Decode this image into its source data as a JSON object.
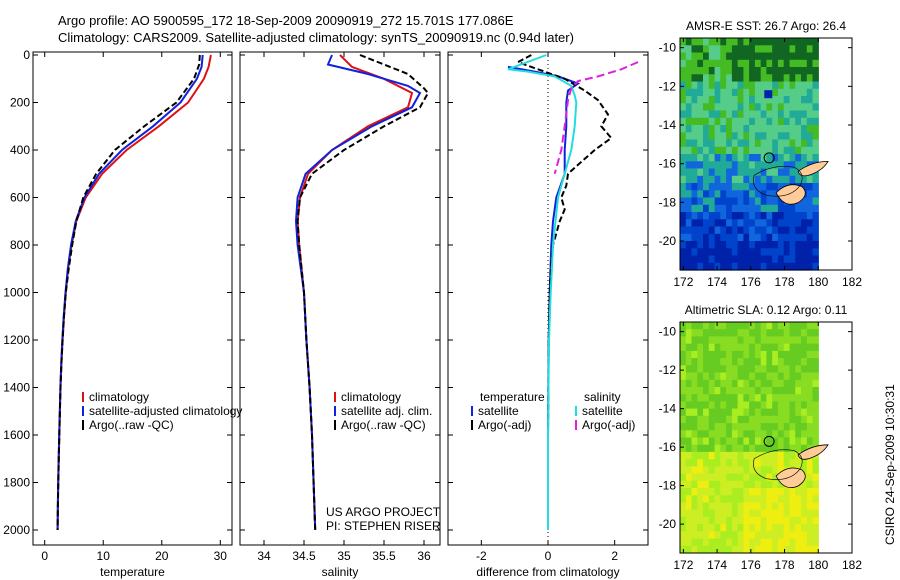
{
  "header": {
    "line1": "Argo profile: AO 5900595_172 18-Sep-2009 20090919_272 15.701S 177.086E",
    "line2": "Climatology: CARS2009. Satellite-adjusted climatology: synTS_20090919.nc (0.94d later)"
  },
  "footer_note": "CSIRO 24-Sep-2009 10:30:31",
  "credits": {
    "line1": "US ARGO PROJECT",
    "line2": "PI: STEPHEN RISER"
  },
  "chart_data": [
    {
      "type": "line",
      "id": "temperature",
      "xlabel": "temperature",
      "xlim": [
        -2,
        32
      ],
      "ylim": [
        0,
        2050
      ],
      "y_inverted": true,
      "xticks": [
        0,
        10,
        20,
        30
      ],
      "yticks": [
        0,
        200,
        400,
        600,
        800,
        1000,
        1200,
        1400,
        1600,
        1800,
        2000
      ],
      "legend": [
        "climatology",
        "satellite-adjusted climatology",
        "Argo(..raw -QC)"
      ],
      "series": [
        {
          "name": "climatology",
          "color": "#dd1111",
          "points": [
            [
              28.4,
              0
            ],
            [
              28.0,
              50
            ],
            [
              27.2,
              100
            ],
            [
              24.5,
              200
            ],
            [
              19.5,
              300
            ],
            [
              14.0,
              400
            ],
            [
              9.8,
              500
            ],
            [
              7.0,
              600
            ],
            [
              5.4,
              700
            ],
            [
              4.6,
              800
            ],
            [
              4.0,
              900
            ],
            [
              3.6,
              1000
            ],
            [
              3.3,
              1100
            ],
            [
              3.05,
              1200
            ],
            [
              2.85,
              1300
            ],
            [
              2.7,
              1400
            ],
            [
              2.6,
              1500
            ],
            [
              2.5,
              1600
            ],
            [
              2.4,
              1700
            ],
            [
              2.3,
              1800
            ],
            [
              2.25,
              1900
            ],
            [
              2.2,
              2000
            ]
          ]
        },
        {
          "name": "satellite-adjusted climatology",
          "color": "#1122dd",
          "points": [
            [
              27.0,
              0
            ],
            [
              26.8,
              50
            ],
            [
              26.0,
              100
            ],
            [
              23.2,
              200
            ],
            [
              18.5,
              300
            ],
            [
              13.2,
              400
            ],
            [
              9.3,
              500
            ],
            [
              6.8,
              600
            ],
            [
              5.3,
              700
            ],
            [
              4.5,
              800
            ],
            [
              3.95,
              900
            ],
            [
              3.55,
              1000
            ],
            [
              3.25,
              1100
            ],
            [
              3.0,
              1200
            ],
            [
              2.82,
              1300
            ],
            [
              2.68,
              1400
            ],
            [
              2.58,
              1500
            ],
            [
              2.48,
              1600
            ],
            [
              2.38,
              1700
            ],
            [
              2.3,
              1800
            ],
            [
              2.24,
              1900
            ],
            [
              2.2,
              2000
            ]
          ]
        },
        {
          "name": "Argo(..raw -QC)",
          "color": "#000000",
          "dash": "6,3",
          "points": [
            [
              26.5,
              0
            ],
            [
              26.4,
              40
            ],
            [
              25.5,
              100
            ],
            [
              22.5,
              200
            ],
            [
              17.0,
              300
            ],
            [
              12.0,
              400
            ],
            [
              8.8,
              500
            ],
            [
              6.6,
              600
            ],
            [
              5.4,
              700
            ],
            [
              4.7,
              800
            ],
            [
              4.1,
              900
            ],
            [
              3.6,
              1000
            ],
            [
              3.3,
              1100
            ],
            [
              3.05,
              1200
            ],
            [
              2.85,
              1300
            ],
            [
              2.7,
              1400
            ],
            [
              2.6,
              1500
            ],
            [
              2.5,
              1600
            ],
            [
              2.4,
              1700
            ],
            [
              2.32,
              1800
            ],
            [
              2.25,
              1900
            ],
            [
              2.2,
              2000
            ]
          ]
        }
      ]
    },
    {
      "type": "line",
      "id": "salinity",
      "xlabel": "salinity",
      "xlim": [
        33.7,
        36.2
      ],
      "ylim": [
        0,
        2050
      ],
      "y_inverted": true,
      "xticks": [
        34,
        34.5,
        35,
        35.5,
        36
      ],
      "legend": [
        "climatology",
        "satellite adj. clim.",
        "Argo(..raw -QC)"
      ],
      "series": [
        {
          "name": "climatology",
          "color": "#dd1111",
          "points": [
            [
              34.95,
              0
            ],
            [
              35.1,
              50
            ],
            [
              35.5,
              100
            ],
            [
              35.85,
              160
            ],
            [
              35.8,
              220
            ],
            [
              35.3,
              300
            ],
            [
              34.85,
              400
            ],
            [
              34.55,
              500
            ],
            [
              34.45,
              600
            ],
            [
              34.42,
              700
            ],
            [
              34.44,
              800
            ],
            [
              34.47,
              900
            ],
            [
              34.5,
              1000
            ],
            [
              34.53,
              1200
            ],
            [
              34.57,
              1400
            ],
            [
              34.6,
              1600
            ],
            [
              34.62,
              1800
            ],
            [
              34.64,
              2000
            ]
          ]
        },
        {
          "name": "satellite adj. clim.",
          "color": "#1122dd",
          "points": [
            [
              34.85,
              0
            ],
            [
              34.8,
              40
            ],
            [
              35.3,
              80
            ],
            [
              35.8,
              130
            ],
            [
              35.95,
              160
            ],
            [
              35.85,
              220
            ],
            [
              35.35,
              300
            ],
            [
              34.85,
              400
            ],
            [
              34.52,
              500
            ],
            [
              34.42,
              600
            ],
            [
              34.4,
              700
            ],
            [
              34.42,
              800
            ],
            [
              34.46,
              900
            ],
            [
              34.5,
              1000
            ],
            [
              34.53,
              1200
            ],
            [
              34.57,
              1400
            ],
            [
              34.6,
              1600
            ],
            [
              34.62,
              1800
            ],
            [
              34.64,
              2000
            ]
          ]
        },
        {
          "name": "Argo(..raw -QC)",
          "color": "#000000",
          "dash": "6,3",
          "points": [
            [
              35.2,
              0
            ],
            [
              35.5,
              40
            ],
            [
              35.8,
              80
            ],
            [
              36.0,
              140
            ],
            [
              36.05,
              160
            ],
            [
              35.95,
              220
            ],
            [
              35.5,
              300
            ],
            [
              35.0,
              400
            ],
            [
              34.6,
              500
            ],
            [
              34.45,
              600
            ],
            [
              34.42,
              700
            ],
            [
              34.44,
              800
            ],
            [
              34.47,
              900
            ],
            [
              34.5,
              1000
            ],
            [
              34.53,
              1200
            ],
            [
              34.57,
              1400
            ],
            [
              34.6,
              1600
            ],
            [
              34.62,
              1800
            ],
            [
              34.64,
              2000
            ]
          ]
        }
      ]
    },
    {
      "type": "line",
      "id": "difference",
      "xlabel": "difference from climatology",
      "xlim": [
        -3,
        3
      ],
      "ylim": [
        0,
        2050
      ],
      "y_inverted": true,
      "xticks": [
        -2,
        0,
        2
      ],
      "legend": [
        "temperature",
        "satellite",
        "Argo(-adj)",
        "salinity",
        "satellite",
        "Argo(-adj)"
      ],
      "series": [
        {
          "name": "temperature satellite",
          "color": "#1122dd",
          "points": [
            [
              -1.2,
              50
            ],
            [
              -0.4,
              70
            ],
            [
              0.3,
              90
            ],
            [
              0.9,
              120
            ],
            [
              0.6,
              150
            ],
            [
              0.55,
              200
            ],
            [
              0.55,
              300
            ],
            [
              0.5,
              400
            ],
            [
              0.5,
              500
            ],
            [
              0.25,
              600
            ],
            [
              0.15,
              700
            ],
            [
              0.1,
              800
            ],
            [
              0.05,
              1000
            ],
            [
              0.02,
              1200
            ],
            [
              0.0,
              1600
            ],
            [
              0.0,
              2000
            ]
          ]
        },
        {
          "name": "temperature Argo(-adj)",
          "color": "#000000",
          "dash": "6,3",
          "points": [
            [
              -0.5,
              0
            ],
            [
              -0.9,
              30
            ],
            [
              -0.3,
              60
            ],
            [
              0.5,
              100
            ],
            [
              1.1,
              150
            ],
            [
              1.5,
              190
            ],
            [
              1.8,
              250
            ],
            [
              1.6,
              300
            ],
            [
              1.9,
              350
            ],
            [
              1.4,
              400
            ],
            [
              1.0,
              450
            ],
            [
              0.6,
              500
            ],
            [
              0.55,
              550
            ],
            [
              0.4,
              600
            ],
            [
              0.5,
              650
            ],
            [
              0.35,
              700
            ],
            [
              0.15,
              800
            ],
            [
              0.08,
              900
            ],
            [
              0.05,
              1000
            ],
            [
              0.02,
              1200
            ],
            [
              0.0,
              1600
            ],
            [
              0.0,
              2000
            ]
          ]
        },
        {
          "name": "salinity satellite",
          "color": "#22dddd",
          "points": [
            [
              -0.05,
              0
            ],
            [
              -1.2,
              60
            ],
            [
              -0.6,
              70
            ],
            [
              0.2,
              90
            ],
            [
              0.7,
              130
            ],
            [
              0.8,
              170
            ],
            [
              0.85,
              200
            ],
            [
              0.8,
              300
            ],
            [
              0.7,
              400
            ],
            [
              0.3,
              600
            ],
            [
              0.15,
              800
            ],
            [
              0.08,
              1000
            ],
            [
              0.03,
              1200
            ],
            [
              0.0,
              1600
            ],
            [
              0.0,
              2000
            ]
          ]
        },
        {
          "name": "salinity Argo(-adj)",
          "color": "#dd22dd",
          "dash": "8,4",
          "points": [
            [
              2.7,
              30
            ],
            [
              2.2,
              60
            ],
            [
              1.5,
              90
            ],
            [
              0.9,
              110
            ],
            [
              0.7,
              140
            ],
            [
              0.6,
              190
            ],
            [
              0.5,
              300
            ],
            [
              0.4,
              400
            ],
            [
              0.2,
              500
            ]
          ]
        }
      ]
    }
  ],
  "maps": [
    {
      "title": "AMSR-E SST: 26.7 Argo: 26.4",
      "xticks": [
        172,
        174,
        176,
        178,
        180,
        182
      ],
      "yticks": [
        -10,
        -12,
        -14,
        -16,
        -18,
        -20
      ],
      "xlim": [
        171.8,
        182.0
      ],
      "ylim": [
        -21.5,
        -9.5
      ],
      "colors": [
        "#116622",
        "#44bb22",
        "#55cc88",
        "#22aa99",
        "#1166dd",
        "#0044cc",
        "#0022aa"
      ],
      "marker": {
        "lon": 177.086,
        "lat": -15.701
      }
    },
    {
      "title": "Altimetric SLA: 0.12 Argo: 0.11",
      "xticks": [
        172,
        174,
        176,
        178,
        180,
        182
      ],
      "yticks": [
        -10,
        -12,
        -14,
        -16,
        -18,
        -20
      ],
      "xlim": [
        171.8,
        182.0
      ],
      "ylim": [
        -21.5,
        -9.5
      ],
      "colors": [
        "#66cc22",
        "#88dd22",
        "#aaee22",
        "#ccee22",
        "#eeee11"
      ],
      "marker": {
        "lon": 177.086,
        "lat": -15.701
      }
    }
  ]
}
